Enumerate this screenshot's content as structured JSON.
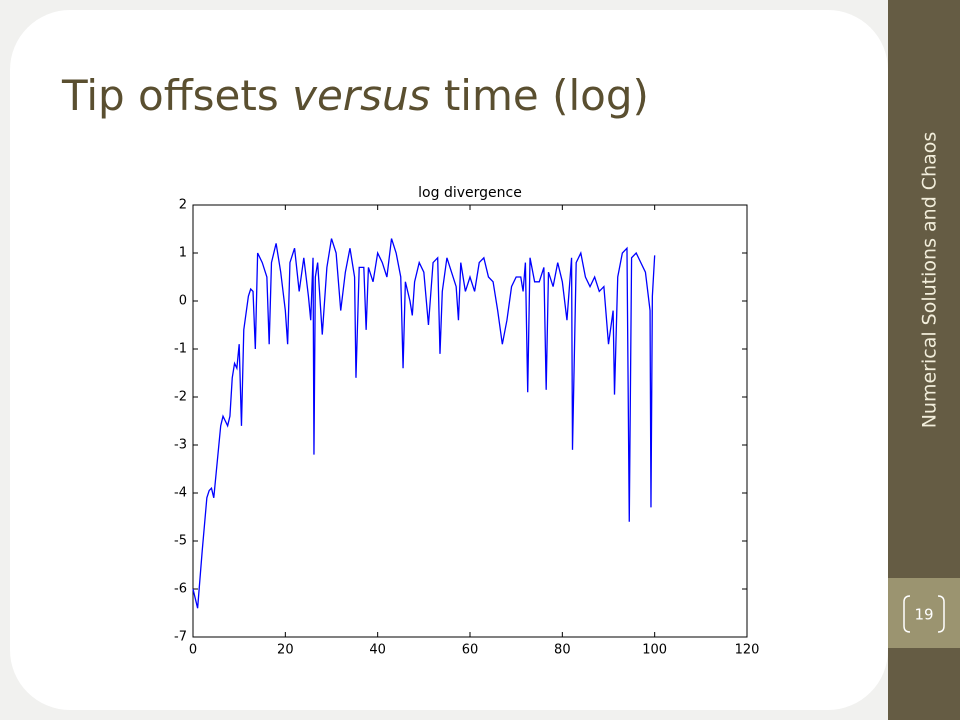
{
  "slide": {
    "title": [
      "Tip offsets",
      "versus",
      "time (log)"
    ],
    "sidebar": "Numerical Solutions and Chaos",
    "page_number": "19"
  },
  "chart_data": {
    "type": "line",
    "title": "log divergence",
    "xlim": [
      0,
      120
    ],
    "xticks": [
      0,
      20,
      40,
      60,
      80,
      100,
      120
    ],
    "ylim": [
      -7,
      2
    ],
    "yticks": [
      -7,
      -6,
      -5,
      -4,
      -3,
      -2,
      -1,
      0,
      1,
      2
    ],
    "series": [
      {
        "color": "#0000ff",
        "x": [
          0,
          1,
          2,
          3,
          3.5,
          4,
          4.5,
          5,
          6,
          6.5,
          7,
          7.5,
          8,
          8.5,
          9,
          9.5,
          10,
          10.5,
          11,
          12,
          12.5,
          13,
          13.5,
          14,
          15,
          16,
          16.5,
          17,
          18,
          19,
          20,
          20.5,
          21,
          22,
          23,
          24,
          25,
          25.5,
          26,
          26.2,
          26.5,
          27,
          28,
          29,
          30,
          31,
          32,
          33,
          34,
          35,
          35.3,
          36,
          37,
          37.5,
          38,
          39,
          40,
          41,
          42,
          43,
          44,
          45,
          45.5,
          46,
          47,
          47.5,
          48,
          49,
          50,
          51,
          52,
          53,
          53.5,
          54,
          55,
          56,
          57,
          57.5,
          58,
          59,
          60,
          61,
          62,
          63,
          64,
          65,
          66,
          67,
          68,
          69,
          70,
          71,
          71.5,
          72,
          72.5,
          73,
          74,
          75,
          76,
          76.5,
          77,
          78,
          79,
          80,
          81,
          82,
          82.2,
          83,
          84,
          85,
          86,
          87,
          88,
          89,
          90,
          91,
          91.3,
          92,
          93,
          94,
          94.5,
          95,
          96,
          97,
          98,
          99,
          99.2,
          99.5,
          100
        ],
        "values": [
          -6.0,
          -6.4,
          -5.2,
          -4.1,
          -3.95,
          -3.9,
          -4.1,
          -3.6,
          -2.6,
          -2.4,
          -2.5,
          -2.6,
          -2.4,
          -1.6,
          -1.3,
          -1.4,
          -0.9,
          -2.6,
          -0.6,
          0.1,
          0.25,
          0.2,
          -1.0,
          1.0,
          0.8,
          0.5,
          -0.9,
          0.8,
          1.2,
          0.6,
          -0.2,
          -0.9,
          0.8,
          1.1,
          0.2,
          0.9,
          0.1,
          -0.4,
          0.9,
          -3.2,
          0.5,
          0.8,
          -0.7,
          0.7,
          1.3,
          1.0,
          -0.2,
          0.6,
          1.1,
          0.5,
          -1.6,
          0.7,
          0.7,
          -0.6,
          0.7,
          0.4,
          1.0,
          0.8,
          0.5,
          1.3,
          1.0,
          0.5,
          -1.4,
          0.4,
          0.0,
          -0.3,
          0.4,
          0.8,
          0.6,
          -0.5,
          0.8,
          0.9,
          -1.1,
          0.2,
          0.9,
          0.6,
          0.3,
          -0.4,
          0.8,
          0.2,
          0.5,
          0.2,
          0.8,
          0.9,
          0.5,
          0.4,
          -0.2,
          -0.9,
          -0.4,
          0.3,
          0.5,
          0.5,
          0.2,
          0.8,
          -1.9,
          0.9,
          0.4,
          0.4,
          0.7,
          -1.85,
          0.6,
          0.3,
          0.8,
          0.4,
          -0.4,
          0.9,
          -3.1,
          0.8,
          1.0,
          0.5,
          0.3,
          0.5,
          0.2,
          0.3,
          -0.9,
          -0.2,
          -1.95,
          0.5,
          1.0,
          1.1,
          -4.6,
          0.9,
          1.0,
          0.8,
          0.6,
          -0.2,
          -4.3,
          0.1,
          0.95
        ]
      }
    ]
  }
}
